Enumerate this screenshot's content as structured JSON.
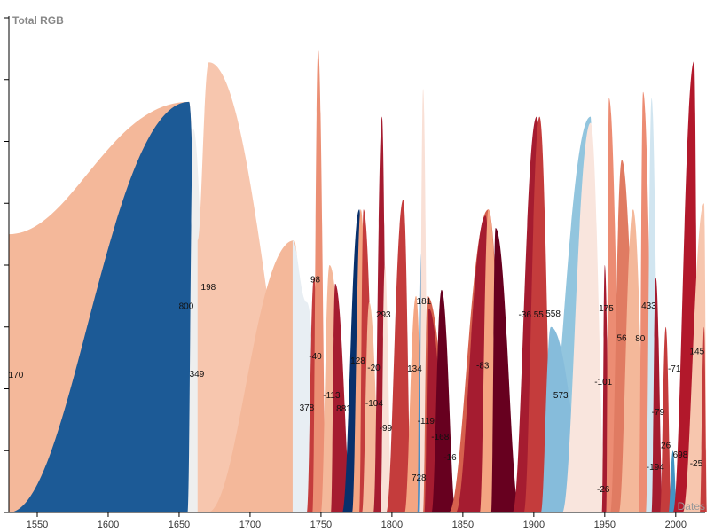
{
  "chart_data": {
    "type": "area",
    "title": "Total RGB",
    "xlabel": "Dates",
    "ylabel": "",
    "xlim": [
      1530,
      2022
    ],
    "ylim": [
      0,
      8
    ],
    "x_ticks": [
      1550,
      1600,
      1650,
      1700,
      1750,
      1800,
      1850,
      1900,
      1950,
      2000
    ],
    "y_tick_count": 9,
    "grid": false,
    "series": [
      {
        "start": 1530,
        "startH": 4.5,
        "peak": 1657,
        "h": 6.64,
        "end": 1665,
        "color": "#f4b89a"
      },
      {
        "start": 1530,
        "startH": 0,
        "peak": 1657,
        "h": 6.64,
        "end": 1665,
        "color": "#1c5a96"
      },
      {
        "start": 1656,
        "startH": 0,
        "peak": 1660,
        "h": 6.2,
        "end": 1673,
        "color": "#eeeeee"
      },
      {
        "start": 1663,
        "startH": 4.4,
        "peak": 1671,
        "h": 7.28,
        "end": 1746,
        "color": "#f7c6ae"
      },
      {
        "start": 1670,
        "startH": 0,
        "peak": 1731,
        "h": 4.4,
        "end": 1742,
        "color": "#f4b89a"
      },
      {
        "start": 1730,
        "startH": 4.4,
        "peak": 1740,
        "h": 3.4,
        "end": 1752,
        "color": "#e8eef3"
      },
      {
        "start": 1740,
        "startH": 0,
        "peak": 1745,
        "h": 3.8,
        "end": 1751,
        "color": "#c43c3c"
      },
      {
        "start": 1744,
        "startH": 0,
        "peak": 1748,
        "h": 7.5,
        "end": 1754,
        "color": "#eb8f74"
      },
      {
        "start": 1750,
        "startH": 0,
        "peak": 1756,
        "h": 4.0,
        "end": 1772,
        "color": "#f4b89a"
      },
      {
        "start": 1757,
        "startH": 0,
        "peak": 1760,
        "h": 3.7,
        "end": 1772,
        "color": "#a51c30"
      },
      {
        "start": 1765,
        "startH": 0,
        "peak": 1777,
        "h": 4.9,
        "end": 1782,
        "color": "#08306b"
      },
      {
        "start": 1772,
        "startH": 0,
        "peak": 1778,
        "h": 4.9,
        "end": 1786,
        "color": "#f4a582"
      },
      {
        "start": 1777,
        "startH": 0,
        "peak": 1780,
        "h": 4.9,
        "end": 1790,
        "color": "#c43c3c"
      },
      {
        "start": 1779,
        "startH": 0,
        "peak": 1784,
        "h": 3.4,
        "end": 1793,
        "color": "#f4b89a"
      },
      {
        "start": 1787,
        "startH": 0,
        "peak": 1793,
        "h": 6.4,
        "end": 1797,
        "color": "#a51c30"
      },
      {
        "start": 1792,
        "startH": 0,
        "peak": 1795,
        "h": 4.0,
        "end": 1800,
        "color": "#f9e0d6"
      },
      {
        "start": 1796,
        "startH": 0,
        "peak": 1808,
        "h": 5.06,
        "end": 1814,
        "color": "#c43c3c"
      },
      {
        "start": 1809,
        "startH": 0,
        "peak": 1817,
        "h": 3.5,
        "end": 1823,
        "color": "#f4a582"
      },
      {
        "start": 1818,
        "startH": 0,
        "peak": 1820,
        "h": 4.2,
        "end": 1822,
        "color": "#4a8ec4"
      },
      {
        "start": 1819,
        "startH": 0,
        "peak": 1822,
        "h": 6.85,
        "end": 1826,
        "color": "#f9e0d6"
      },
      {
        "start": 1822,
        "startH": 0,
        "peak": 1825,
        "h": 3.5,
        "end": 1846,
        "color": "#d6604d"
      },
      {
        "start": 1823,
        "startH": 0,
        "peak": 1826,
        "h": 3.3,
        "end": 1842,
        "color": "#a51c30"
      },
      {
        "start": 1828,
        "startH": 0,
        "peak": 1835,
        "h": 3.6,
        "end": 1845,
        "color": "#67001f"
      },
      {
        "start": 1840,
        "startH": 0,
        "peak": 1868,
        "h": 4.9,
        "end": 1882,
        "color": "#d6604d"
      },
      {
        "start": 1845,
        "startH": 0,
        "peak": 1866,
        "h": 4.8,
        "end": 1874,
        "color": "#a51c30"
      },
      {
        "start": 1862,
        "startH": 0,
        "peak": 1868,
        "h": 4.9,
        "end": 1881,
        "color": "#f4a582"
      },
      {
        "start": 1870,
        "startH": 0,
        "peak": 1873,
        "h": 4.6,
        "end": 1890,
        "color": "#67001f"
      },
      {
        "start": 1885,
        "startH": 0,
        "peak": 1902,
        "h": 6.4,
        "end": 1912,
        "color": "#a51c30"
      },
      {
        "start": 1893,
        "startH": 0,
        "peak": 1904,
        "h": 6.4,
        "end": 1914,
        "color": "#c43c3c"
      },
      {
        "start": 1905,
        "startH": 0,
        "peak": 1940,
        "h": 6.4,
        "end": 1944,
        "color": "#92c5de"
      },
      {
        "start": 1905,
        "startH": 0,
        "peak": 1912,
        "h": 3.0,
        "end": 1940,
        "color": "#86bcdb"
      },
      {
        "start": 1920,
        "startH": 0,
        "peak": 1940,
        "h": 6.3,
        "end": 1951,
        "color": "#f9e5dd"
      },
      {
        "start": 1948,
        "startH": 0,
        "peak": 1950,
        "h": 4.0,
        "end": 1954,
        "color": "#a51c30"
      },
      {
        "start": 1951,
        "startH": 0,
        "peak": 1953,
        "h": 6.7,
        "end": 1963,
        "color": "#ec8c73"
      },
      {
        "start": 1954,
        "startH": 0,
        "peak": 1962,
        "h": 5.7,
        "end": 1976,
        "color": "#e07b62"
      },
      {
        "start": 1960,
        "startH": 0,
        "peak": 1970,
        "h": 4.9,
        "end": 1980,
        "color": "#f4b89a"
      },
      {
        "start": 1974,
        "startH": 0,
        "peak": 1977,
        "h": 6.8,
        "end": 1986,
        "color": "#ec8c73"
      },
      {
        "start": 1979,
        "startH": 0,
        "peak": 1983,
        "h": 6.7,
        "end": 1989,
        "color": "#d1e5f0"
      },
      {
        "start": 1983,
        "startH": 0,
        "peak": 1986,
        "h": 3.8,
        "end": 1991,
        "color": "#a51c30"
      },
      {
        "start": 1989,
        "startH": 0,
        "peak": 1993,
        "h": 3.0,
        "end": 1997,
        "color": "#c43c3c"
      },
      {
        "start": 1995,
        "startH": 0,
        "peak": 1998,
        "h": 1.0,
        "end": 2001,
        "color": "#4393c3"
      },
      {
        "start": 1998,
        "startH": 0,
        "peak": 2013,
        "h": 7.3,
        "end": 2016,
        "color": "#b2182b"
      },
      {
        "start": 2005,
        "startH": 0,
        "peak": 2020,
        "h": 5.0,
        "end": 2022,
        "color": "#f7c6ae"
      },
      {
        "start": 2017,
        "startH": 0,
        "peak": 2020,
        "h": 3.0,
        "end": 2022,
        "color": "#c43c3c"
      }
    ],
    "annotations": [
      {
        "text": "170",
        "x": 1535,
        "y": 2.22
      },
      {
        "text": "800",
        "x": 1655,
        "y": 3.33
      },
      {
        "text": "198",
        "x": 1670.6,
        "y": 3.64
      },
      {
        "text": "349",
        "x": 1662.5,
        "y": 2.24
      },
      {
        "text": "98",
        "x": 1746,
        "y": 3.76
      },
      {
        "text": "-40",
        "x": 1746,
        "y": 2.52
      },
      {
        "text": "378",
        "x": 1740,
        "y": 1.69
      },
      {
        "text": "-113",
        "x": 1757.5,
        "y": 1.89
      },
      {
        "text": "881",
        "x": 1766,
        "y": 1.68
      },
      {
        "text": "128",
        "x": 1776,
        "y": 2.45
      },
      {
        "text": "-20",
        "x": 1782,
        "y": 2.34
      },
      {
        "text": "293",
        "x": 1794,
        "y": 3.2
      },
      {
        "text": "-104",
        "x": 1787.5,
        "y": 1.76
      },
      {
        "text": "-99",
        "x": 1795.6,
        "y": 1.36
      },
      {
        "text": "181",
        "x": 1822.5,
        "y": 3.41
      },
      {
        "text": "134",
        "x": 1816,
        "y": 2.32
      },
      {
        "text": "-119",
        "x": 1824,
        "y": 1.48
      },
      {
        "text": "-168",
        "x": 1834,
        "y": 1.22
      },
      {
        "text": "-16",
        "x": 1841,
        "y": 0.89
      },
      {
        "text": "728",
        "x": 1819,
        "y": 0.56
      },
      {
        "text": "-83",
        "x": 1864,
        "y": 2.37
      },
      {
        "text": "-36.55",
        "x": 1898,
        "y": 3.2
      },
      {
        "text": "558",
        "x": 1908,
        "y": 3.21
      },
      {
        "text": "573",
        "x": 1919,
        "y": 1.89
      },
      {
        "text": "175",
        "x": 1951,
        "y": 3.3
      },
      {
        "text": "56",
        "x": 1962,
        "y": 2.82
      },
      {
        "text": "80",
        "x": 1975,
        "y": 2.81
      },
      {
        "text": "433",
        "x": 1981,
        "y": 3.34
      },
      {
        "text": "-101",
        "x": 1949,
        "y": 2.11
      },
      {
        "text": "-26",
        "x": 1949,
        "y": 0.37
      },
      {
        "text": "-79",
        "x": 1987.5,
        "y": 1.62
      },
      {
        "text": "26",
        "x": 1993,
        "y": 1.08
      },
      {
        "text": "698",
        "x": 1994,
        "y": 0.93
      },
      {
        "text": "-194",
        "x": 1985.6,
        "y": 0.73
      },
      {
        "text": "-71",
        "x": 1999,
        "y": 2.32
      },
      {
        "text": "145",
        "x": 2015,
        "y": 2.6
      },
      {
        "text": "-25",
        "x": 2012.5,
        "y": 0.79
      }
    ]
  }
}
